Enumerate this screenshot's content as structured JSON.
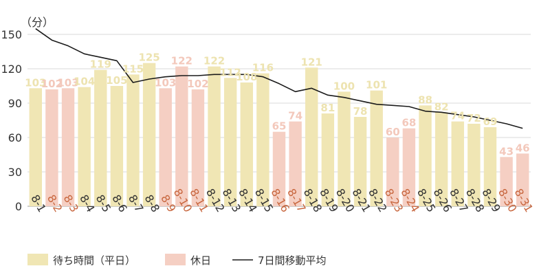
{
  "chart_data": {
    "type": "bar",
    "unit_label": "（分）",
    "categories": [
      "8-1",
      "8-2",
      "8-3",
      "8-4",
      "8-5",
      "8-6",
      "8-7",
      "8-8",
      "8-9",
      "8-10",
      "8-11",
      "8-12",
      "8-13",
      "8-14",
      "8-15",
      "8-16",
      "8-17",
      "8-18",
      "8-19",
      "8-20",
      "8-21",
      "8-22",
      "8-23",
      "8-24",
      "8-25",
      "8-26",
      "8-27",
      "8-28",
      "8-29",
      "8-30",
      "8-31"
    ],
    "values": [
      103,
      102,
      103,
      104,
      119,
      105,
      115,
      125,
      103,
      122,
      102,
      122,
      112,
      108,
      116,
      65,
      74,
      121,
      81,
      100,
      78,
      101,
      60,
      68,
      88,
      82,
      74,
      72,
      69,
      43,
      46
    ],
    "holiday": [
      false,
      true,
      true,
      false,
      false,
      false,
      false,
      false,
      true,
      true,
      true,
      false,
      false,
      false,
      false,
      true,
      true,
      false,
      false,
      false,
      false,
      false,
      true,
      true,
      false,
      false,
      false,
      false,
      false,
      true,
      true
    ],
    "moving_average": [
      155,
      145,
      140,
      133,
      130,
      127,
      108,
      111,
      113,
      114,
      114,
      115,
      115,
      115,
      113,
      107,
      100,
      103,
      97,
      95,
      92,
      89,
      88,
      87,
      83,
      82,
      80,
      78,
      75,
      72,
      68
    ],
    "ylim": [
      0,
      150
    ],
    "yticks": [
      0,
      30,
      60,
      90,
      120,
      150
    ],
    "grid": true,
    "legend_position": "bottom-left",
    "legend": {
      "weekday": "待ち時間（平日）",
      "holiday": "休日",
      "average": "7日間移動平均"
    },
    "colors": {
      "weekday_bar": "#f0e6b4",
      "holiday_bar": "#f5cfc3",
      "average_line": "#1a1a1a",
      "weekday_label": "#ede3b0",
      "holiday_label": "#f3c8bb",
      "weekday_cat": "#333333",
      "holiday_cat": "#c8673f",
      "grid": "#d9d9d9"
    }
  }
}
